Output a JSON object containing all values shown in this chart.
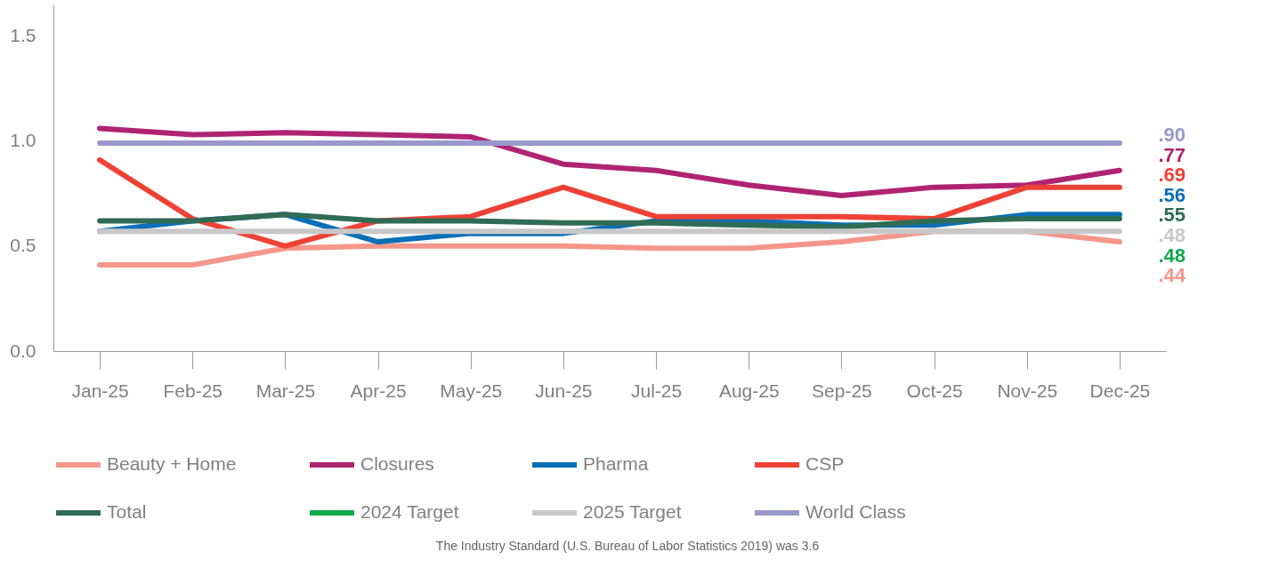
{
  "chart_data": {
    "type": "line",
    "categories": [
      "Jan-25",
      "Feb-25",
      "Mar-25",
      "Apr-25",
      "May-25",
      "Jun-25",
      "Jul-25",
      "Aug-25",
      "Sep-25",
      "Oct-25",
      "Nov-25",
      "Dec-25"
    ],
    "series": [
      {
        "name": "Beauty + Home",
        "color": "#f4978a",
        "values": [
          0.41,
          0.41,
          0.49,
          0.5,
          0.5,
          0.5,
          0.49,
          0.49,
          0.52,
          0.57,
          0.57,
          0.52
        ]
      },
      {
        "name": "Closures",
        "color": "#b02373",
        "values": [
          1.06,
          1.03,
          1.04,
          1.03,
          1.02,
          0.89,
          0.86,
          0.79,
          0.74,
          0.78,
          0.79,
          0.86
        ]
      },
      {
        "name": "Pharma",
        "color": "#0a6fb7",
        "values": [
          0.57,
          0.62,
          0.65,
          0.52,
          0.56,
          0.56,
          0.62,
          0.62,
          0.6,
          0.6,
          0.65,
          0.65
        ]
      },
      {
        "name": "CSP",
        "color": "#ef4135",
        "values": [
          0.91,
          0.63,
          0.5,
          0.62,
          0.64,
          0.78,
          0.64,
          0.64,
          0.64,
          0.63,
          0.78,
          0.78
        ]
      },
      {
        "name": "Total",
        "color": "#2f6b55",
        "values": [
          0.62,
          0.62,
          0.65,
          0.62,
          0.62,
          0.61,
          0.61,
          0.6,
          0.59,
          0.62,
          0.63,
          0.63
        ]
      },
      {
        "name": "2024 Target",
        "color": "#13a84a",
        "values": [
          null,
          null,
          null,
          null,
          null,
          null,
          null,
          null,
          null,
          null,
          null,
          null
        ]
      },
      {
        "name": "2025 Target",
        "color": "#c8c8c8",
        "values": [
          0.57,
          0.57,
          0.57,
          0.57,
          0.57,
          0.57,
          0.57,
          0.57,
          0.57,
          0.57,
          0.57,
          0.57
        ]
      },
      {
        "name": "World Class",
        "color": "#9a98cb",
        "values": [
          0.99,
          0.99,
          0.99,
          0.99,
          0.99,
          0.99,
          0.99,
          0.99,
          0.99,
          0.99,
          0.99,
          0.99
        ]
      }
    ],
    "ylim": [
      0,
      1.65
    ],
    "yticks": [
      {
        "value": 0,
        "label": "0.0"
      },
      0.5,
      {
        "value": 1,
        "label": "1.0"
      },
      1.5
    ],
    "grid": false,
    "legend": "bottom",
    "marker": "none",
    "line_style": "solid",
    "annotations": [
      ".90",
      ".77",
      ".69",
      ".56",
      ".55",
      ".48",
      ".48",
      ".44",
      "The Industry Standard (U.S. Bureau of Labor Statistics 2019) was 3.6"
    ]
  }
}
